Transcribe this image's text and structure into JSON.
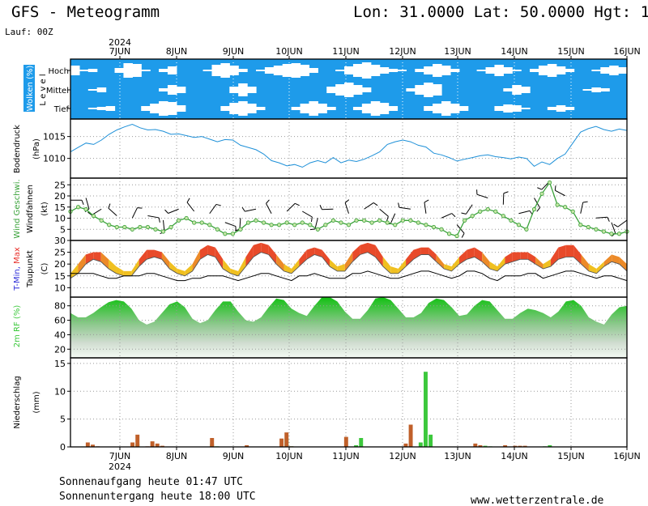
{
  "header": {
    "title": "GFS - Meteogramm",
    "location": "Lon: 31.0000  Lat: 50.0000  Hgt: 1",
    "run": "Lauf: 00Z"
  },
  "footer": {
    "sunrise": "Sonnenaufgang heute 01:47 UTC",
    "sunset": "Sonnenuntergang heute 18:00 UTC",
    "site": "www.wetterzentrale.de"
  },
  "colors": {
    "cloud_bg": "#1e9bea",
    "cloud_fill": "#ffffff",
    "pressure_line": "#1e90d8",
    "wind_speed": "#3aa23a",
    "wind_marker": "#c8e6a8",
    "tmin": "#2a2ad8",
    "tmax": "#e8302a",
    "temp_band_low": "#f0c020",
    "temp_band_high": "#e84a2a",
    "rh_fill": "#3cc83c",
    "precip_conv": "#3cc83c",
    "precip_large": "#c0602a",
    "grid": "#999999"
  },
  "chart_data": {
    "type": "meteogram",
    "year": "2024",
    "x_ticks": [
      "7JUN",
      "8JUN",
      "9JUN",
      "10JUN",
      "11JUN",
      "12JUN",
      "13JUN",
      "14JUN",
      "15JUN",
      "16JUN"
    ],
    "panels": [
      {
        "id": "clouds",
        "ylabel": "Wolken (%)",
        "level_label": "L e v e l",
        "levels": [
          "Hoch",
          "Mittel",
          "Tief"
        ],
        "cover_pct": {
          "Hoch": [
            60,
            10,
            20,
            0,
            0,
            30,
            90,
            80,
            10,
            0,
            20,
            50,
            0,
            0,
            0,
            10,
            70,
            90,
            60,
            20,
            0,
            10,
            40,
            60,
            80,
            90,
            70,
            30,
            0,
            0,
            10,
            50,
            80,
            100,
            70,
            40,
            20,
            10,
            0,
            20,
            50,
            80,
            60,
            20,
            0,
            0,
            10,
            40,
            70,
            40,
            10,
            0,
            20,
            60,
            80,
            50,
            20,
            0,
            0,
            10,
            40,
            60,
            40
          ],
          "Mittel": [
            0,
            0,
            10,
            30,
            0,
            0,
            0,
            0,
            0,
            0,
            20,
            60,
            40,
            0,
            0,
            0,
            0,
            0,
            40,
            80,
            40,
            0,
            0,
            0,
            0,
            0,
            0,
            0,
            0,
            40,
            70,
            90,
            60,
            30,
            0,
            0,
            0,
            0,
            20,
            60,
            90,
            70,
            0,
            0,
            0,
            0,
            0,
            0,
            0,
            20,
            60,
            40,
            0,
            0,
            0,
            0,
            0,
            0,
            10,
            30,
            20,
            0,
            0
          ],
          "Tief": [
            0,
            0,
            10,
            20,
            30,
            0,
            0,
            0,
            30,
            60,
            90,
            80,
            40,
            0,
            0,
            0,
            0,
            30,
            70,
            90,
            60,
            20,
            0,
            0,
            0,
            20,
            60,
            90,
            60,
            20,
            0,
            0,
            20,
            60,
            90,
            70,
            30,
            0,
            0,
            0,
            30,
            60,
            90,
            60,
            30,
            0,
            0,
            0,
            30,
            50,
            40,
            10,
            0,
            0,
            20,
            40,
            20,
            0,
            0,
            0,
            0,
            0,
            0
          ]
        }
      },
      {
        "id": "pressure",
        "ylabel": "Bodendruck",
        "yunit": "(hPa)",
        "ylim": [
          1005.5,
          1019
        ],
        "yticks": [
          1010,
          1015
        ],
        "series": [
          {
            "name": "",
            "values": [
              1011.5,
              1012.5,
              1013.5,
              1013.2,
              1014.2,
              1015.5,
              1016.5,
              1017.2,
              1017.8,
              1017.0,
              1016.5,
              1016.6,
              1016.2,
              1015.5,
              1015.6,
              1015.2,
              1014.8,
              1015.0,
              1014.4,
              1013.8,
              1014.3,
              1014.2,
              1013.0,
              1012.5,
              1012.0,
              1011.0,
              1009.5,
              1009.0,
              1008.3,
              1008.6,
              1008.0,
              1009.0,
              1009.5,
              1009.0,
              1010.2,
              1009.0,
              1009.6,
              1009.3,
              1009.8,
              1010.6,
              1011.5,
              1013.2,
              1013.8,
              1014.2,
              1013.8,
              1013.0,
              1012.6,
              1011.2,
              1010.8,
              1010.2,
              1009.4,
              1009.8,
              1010.2,
              1010.6,
              1010.8,
              1010.4,
              1010.2,
              1009.9,
              1010.3,
              1010.0,
              1008.2,
              1009.2,
              1008.6,
              1010.0,
              1011.0,
              1013.5,
              1016.0,
              1016.8,
              1017.3,
              1016.6,
              1016.2,
              1016.7,
              1016.4
            ]
          }
        ]
      },
      {
        "id": "wind",
        "ylabel": "Wind Geschwi.",
        "ylabel2": "Windfahnen",
        "yunit": "(kt)",
        "ylim": [
          0,
          28
        ],
        "yticks": [
          5,
          10,
          15,
          20,
          25
        ],
        "series": [
          {
            "name": "Wind Geschwi.",
            "values": [
              13,
              15,
              14,
              11,
              9,
              7,
              6,
              6,
              5,
              6,
              6,
              5,
              4,
              6,
              9,
              10,
              8,
              8,
              7,
              5,
              3,
              3,
              5,
              8,
              9,
              8,
              7,
              7,
              8,
              7,
              8,
              7,
              5,
              7,
              9,
              8,
              7,
              9,
              9,
              8,
              9,
              8,
              7,
              9,
              9,
              8,
              7,
              6,
              5,
              3,
              2,
              9,
              11,
              13,
              14,
              13,
              11,
              9,
              7,
              5,
              14,
              21,
              26,
              16,
              15,
              13,
              7,
              6,
              5,
              4,
              3,
              3,
              4
            ]
          }
        ]
      },
      {
        "id": "temperature",
        "ylabel": "T-Min, Max",
        "ylabel2": "Taupunkt",
        "yunit": "(C)",
        "ylim": [
          6,
          30
        ],
        "yticks": [
          10,
          15,
          20,
          25,
          30
        ],
        "series": [
          {
            "name": "T-Min",
            "values": [
              14,
              16,
              20,
              22,
              21,
              18,
              16,
              15,
              15,
              19,
              22,
              23,
              22,
              18,
              16,
              15,
              17,
              22,
              24,
              23,
              18,
              16,
              15,
              19,
              23,
              25,
              24,
              20,
              17,
              16,
              19,
              22,
              24,
              23,
              19,
              17,
              17,
              21,
              24,
              25,
              23,
              19,
              16,
              16,
              19,
              22,
              24,
              24,
              21,
              18,
              17,
              20,
              22,
              23,
              21,
              18,
              17,
              20,
              21,
              22,
              22,
              20,
              18,
              19,
              22,
              23,
              23,
              20,
              17,
              16,
              19,
              21,
              20,
              17
            ]
          },
          {
            "name": "T-Max",
            "values": [
              15,
              19,
              23,
              24,
              24,
              21,
              18,
              16,
              16,
              21,
              25,
              25,
              24,
              20,
              17,
              16,
              19,
              25,
              27,
              26,
              21,
              17,
              16,
              22,
              27,
              28,
              27,
              23,
              19,
              17,
              21,
              25,
              26,
              25,
              21,
              18,
              19,
              24,
              27,
              28,
              27,
              22,
              18,
              17,
              21,
              25,
              26,
              26,
              23,
              19,
              18,
              22,
              25,
              26,
              24,
              20,
              18,
              22,
              24,
              24,
              24,
              22,
              19,
              21,
              26,
              27,
              27,
              23,
              19,
              17,
              20,
              23,
              22,
              19
            ]
          },
          {
            "name": "Taupunkt",
            "values": [
              16,
              16,
              16,
              16,
              15,
              14,
              14,
              15,
              15,
              15,
              16,
              16,
              15,
              14,
              13,
              13,
              14,
              14,
              15,
              15,
              15,
              14,
              13,
              14,
              15,
              16,
              16,
              15,
              14,
              13,
              15,
              15,
              16,
              15,
              14,
              14,
              14,
              16,
              16,
              17,
              16,
              15,
              14,
              14,
              15,
              16,
              17,
              17,
              16,
              15,
              14,
              15,
              17,
              17,
              16,
              14,
              13,
              15,
              15,
              15,
              16,
              16,
              14,
              15,
              16,
              17,
              17,
              16,
              15,
              14,
              15,
              15,
              14,
              13
            ]
          }
        ]
      },
      {
        "id": "humidity",
        "ylabel": "2m RF (%)",
        "ylim": [
          8,
          92
        ],
        "yticks": [
          20,
          40,
          60,
          80
        ],
        "series": [
          {
            "name": "",
            "values": [
              70,
              64,
              64,
              70,
              78,
              85,
              88,
              86,
              76,
              60,
              54,
              58,
              70,
              82,
              86,
              78,
              62,
              56,
              60,
              74,
              86,
              86,
              72,
              60,
              58,
              64,
              78,
              90,
              88,
              76,
              70,
              66,
              80,
              92,
              92,
              86,
              72,
              62,
              62,
              74,
              90,
              92,
              88,
              76,
              64,
              64,
              70,
              84,
              90,
              88,
              78,
              66,
              68,
              80,
              88,
              86,
              74,
              62,
              62,
              70,
              76,
              74,
              70,
              64,
              72,
              86,
              88,
              80,
              64,
              58,
              54,
              68,
              78,
              80
            ]
          }
        ]
      },
      {
        "id": "precip",
        "ylabel": "Niederschlag",
        "yunit": "(mm)",
        "ylim": [
          0,
          16
        ],
        "yticks": [
          0,
          5,
          10,
          15
        ],
        "series": [
          {
            "name": "",
            "values": [
              0.05,
              0.05,
              0.08,
              0,
              0,
              0,
              0,
              0,
              0,
              0,
              0,
              0,
              0.05,
              0.5,
              0.05,
              0,
              0,
              0,
              0,
              0,
              0,
              0,
              0,
              0,
              0,
              0,
              0,
              0.05,
              0.5,
              0.1,
              0,
              0,
              0,
              0,
              0,
              0,
              0,
              0,
              0,
              0,
              0,
              0,
              0.1,
              1.5,
              0.1,
              0,
              0,
              0,
              0,
              0,
              0,
              0,
              0,
              0,
              0,
              0.05,
              0,
              0.3,
              1.6,
              0,
              0,
              0,
              0,
              0,
              0,
              0,
              0,
              0,
              0,
              0,
              0.8,
              13.5,
              2.2,
              0,
              0,
              0,
              0,
              0,
              0,
              0,
              0,
              0,
              0,
              0.2,
              0.1,
              0,
              0,
              0,
              0,
              0,
              0,
              0,
              0,
              0.05,
              0.05,
              0.1,
              0.3,
              0,
              0,
              0,
              0,
              0,
              0,
              0,
              0,
              0,
              0,
              0,
              0,
              0,
              0,
              0
            ]
          },
          {
            "name": "",
            "values": [
              0,
              0,
              0,
              0.8,
              0.4,
              0.1,
              0,
              0,
              0,
              0,
              0,
              0,
              0.8,
              2.2,
              0,
              0.1,
              1.0,
              0.6,
              0.2,
              0,
              0,
              0,
              0,
              0,
              0,
              0,
              0,
              0,
              1.6,
              0,
              0,
              0,
              0,
              0,
              0,
              0.3,
              0,
              0,
              0,
              0,
              0,
              0,
              1.5,
              2.6,
              0.1,
              0,
              0,
              0,
              0,
              0,
              0,
              0,
              0,
              0,
              0,
              1.8,
              0,
              0,
              0,
              0,
              0,
              0,
              0,
              0,
              0,
              0,
              0,
              0.6,
              4.0,
              0,
              0,
              0,
              0,
              0,
              0,
              0,
              0,
              0,
              0,
              0,
              0,
              0.6,
              0.3,
              0,
              0,
              0,
              0,
              0.3,
              0,
              0.2,
              0.2,
              0.2,
              0,
              0,
              0,
              0,
              0,
              0,
              0,
              0,
              0,
              0,
              0,
              0,
              0,
              0,
              0,
              0,
              0,
              0,
              0
            ]
          }
        ]
      }
    ]
  }
}
